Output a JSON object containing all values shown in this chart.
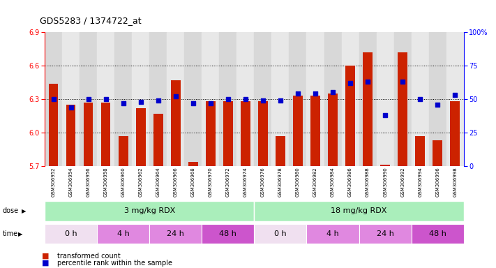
{
  "title": "GDS5283 / 1374722_at",
  "samples": [
    "GSM306952",
    "GSM306954",
    "GSM306956",
    "GSM306958",
    "GSM306960",
    "GSM306962",
    "GSM306964",
    "GSM306966",
    "GSM306968",
    "GSM306970",
    "GSM306972",
    "GSM306974",
    "GSM306976",
    "GSM306978",
    "GSM306980",
    "GSM306982",
    "GSM306984",
    "GSM306986",
    "GSM306988",
    "GSM306990",
    "GSM306992",
    "GSM306994",
    "GSM306996",
    "GSM306998"
  ],
  "bar_values": [
    6.44,
    6.25,
    6.27,
    6.27,
    5.97,
    6.22,
    6.17,
    6.47,
    5.74,
    6.28,
    6.28,
    6.28,
    6.28,
    5.97,
    6.33,
    6.33,
    6.35,
    6.6,
    6.72,
    5.71,
    6.72,
    5.97,
    5.93,
    6.28
  ],
  "percentile_values": [
    50,
    44,
    50,
    50,
    47,
    48,
    49,
    52,
    47,
    47,
    50,
    50,
    49,
    49,
    54,
    54,
    55,
    62,
    63,
    38,
    63,
    50,
    46,
    53
  ],
  "ylim_left": [
    5.7,
    6.9
  ],
  "ylim_right": [
    0,
    100
  ],
  "yticks_left": [
    5.7,
    6.0,
    6.3,
    6.6,
    6.9
  ],
  "yticks_right": [
    0,
    25,
    50,
    75,
    100
  ],
  "bar_color": "#cc2200",
  "dot_color": "#0000cc",
  "bar_bottom": 5.7,
  "dose_labels": [
    "3 mg/kg RDX",
    "18 mg/kg RDX"
  ],
  "dose_color_light": "#aaeebb",
  "dose_color_dark": "#66dd88",
  "time_colors": [
    "#f0ddf0",
    "#dd99dd",
    "#dd99dd",
    "#cc66cc"
  ],
  "time_labels": [
    "0 h",
    "4 h",
    "24 h",
    "48 h",
    "0 h",
    "4 h",
    "24 h",
    "48 h"
  ],
  "time_ranges": [
    [
      0,
      2
    ],
    [
      3,
      5
    ],
    [
      6,
      8
    ],
    [
      9,
      11
    ],
    [
      12,
      14
    ],
    [
      15,
      17
    ],
    [
      18,
      20
    ],
    [
      21,
      23
    ]
  ],
  "time_color_indices": [
    0,
    1,
    2,
    3,
    0,
    1,
    2,
    3
  ],
  "legend_bar_label": "transformed count",
  "legend_dot_label": "percentile rank within the sample",
  "background_color": "#ffffff"
}
